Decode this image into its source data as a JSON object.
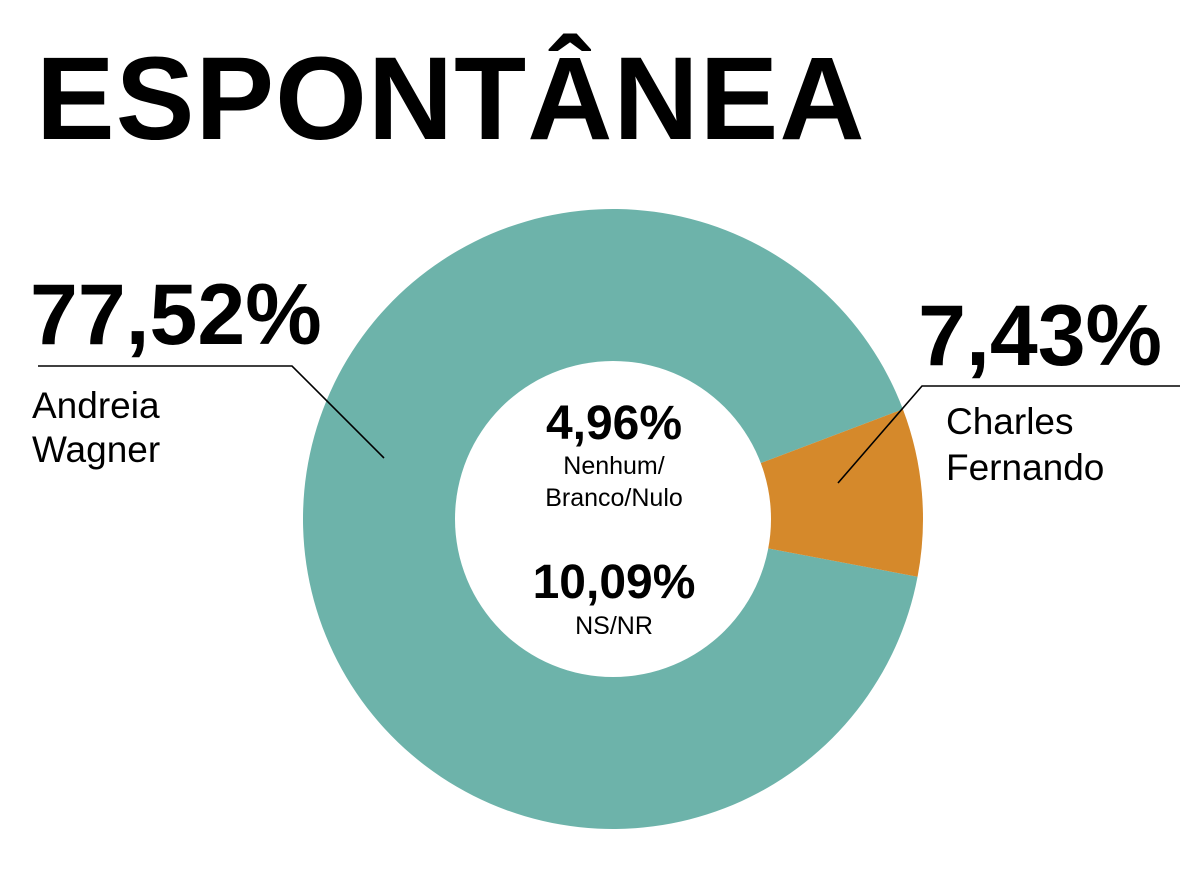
{
  "chart_data": {
    "type": "pie",
    "title": "ESPONTÂNEA",
    "colors": {
      "teal": "#6db3aa",
      "orange": "#d5892b",
      "center": "#ffffff"
    },
    "slices": [
      {
        "name_lines": [
          "Andreia",
          "Wagner"
        ],
        "value": 77.52,
        "label": "77,52%",
        "color": "#6db3aa"
      },
      {
        "name_lines": [
          "Charles",
          "Fernando"
        ],
        "value": 7.43,
        "label": "7,43%",
        "color": "#d5892b"
      }
    ],
    "center_items": [
      {
        "label": "4,96%",
        "name_lines": [
          "Nenhum/",
          "Branco/Nulo"
        ],
        "value": 4.96
      },
      {
        "label": "10,09%",
        "name_lines": [
          "NS/NR"
        ],
        "value": 10.09
      }
    ]
  }
}
